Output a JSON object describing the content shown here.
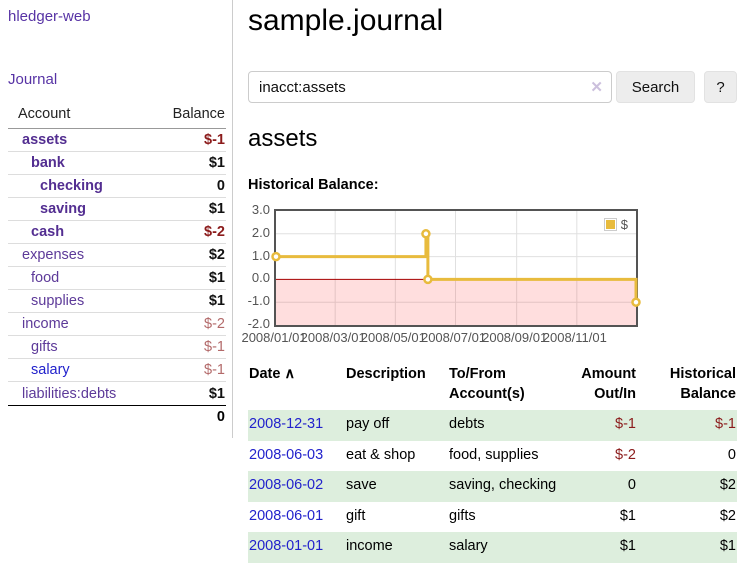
{
  "app": {
    "brand": "hledger-web",
    "nav_journal": "Journal"
  },
  "sidebar": {
    "header": {
      "account": "Account",
      "balance": "Balance"
    },
    "rows": [
      {
        "name": "assets",
        "indent": 0,
        "bold": true,
        "balance": "$-1",
        "balance_style": "neg-strong"
      },
      {
        "name": "bank",
        "indent": 1,
        "bold": true,
        "balance": "$1",
        "balance_style": "pos"
      },
      {
        "name": "checking",
        "indent": 2,
        "bold": true,
        "balance": "0",
        "balance_style": "pos"
      },
      {
        "name": "saving",
        "indent": 2,
        "bold": true,
        "balance": "$1",
        "balance_style": "pos"
      },
      {
        "name": "cash",
        "indent": 1,
        "bold": true,
        "balance": "$-2",
        "balance_style": "neg-strong"
      },
      {
        "name": "expenses",
        "indent": 0,
        "bold": false,
        "balance": "$2",
        "balance_style": "pos"
      },
      {
        "name": "food",
        "indent": 1,
        "bold": false,
        "balance": "$1",
        "balance_style": "pos"
      },
      {
        "name": "supplies",
        "indent": 1,
        "bold": false,
        "balance": "$1",
        "balance_style": "pos"
      },
      {
        "name": "income",
        "indent": 0,
        "bold": false,
        "balance": "$-2",
        "balance_style": "neg-soft"
      },
      {
        "name": "gifts",
        "indent": 1,
        "bold": false,
        "balance": "$-1",
        "balance_style": "neg-soft"
      },
      {
        "name": "salary",
        "indent": 1,
        "bold": false,
        "link_color": "blue",
        "balance": "$-1",
        "balance_style": "neg-soft"
      },
      {
        "name": "liabilities:debts",
        "indent": 0,
        "bold": false,
        "balance": "$1",
        "balance_style": "pos"
      }
    ],
    "total": "0"
  },
  "header": {
    "title": "sample.journal"
  },
  "search": {
    "value": "inacct:assets",
    "clear_icon": "✕",
    "button": "Search",
    "help_button": "?"
  },
  "account_page": {
    "title": "assets",
    "chart_label": "Historical Balance:"
  },
  "chart_data": {
    "type": "line",
    "title": "Historical Balance",
    "step": true,
    "legend": "$",
    "legend_position": "top-right",
    "grid": true,
    "ylim": [
      -2,
      3
    ],
    "xlim": [
      "2008-01-01",
      "2008-12-31"
    ],
    "y_ticks": [
      "3.0",
      "2.0",
      "1.0",
      "0.0",
      "-1.0",
      "-2.0"
    ],
    "x_ticks": [
      "2008/01/01",
      "2008/03/01",
      "2008/05/01",
      "2008/07/01",
      "2008/09/01",
      "2008/11/01"
    ],
    "series": [
      {
        "name": "$",
        "color": "#e8bb3d",
        "points": [
          [
            "2008-01-01",
            1
          ],
          [
            "2008-06-01",
            2
          ],
          [
            "2008-06-03",
            0
          ],
          [
            "2008-12-31",
            -1
          ]
        ]
      }
    ],
    "negative_region_fill": "#ffdede",
    "zero_line_color": "#a40000"
  },
  "register": {
    "columns": [
      {
        "label": "Date",
        "sort_icon": "∧",
        "align": "left"
      },
      {
        "label": "Description",
        "align": "left"
      },
      {
        "label": "To/From Account(s)",
        "align": "left"
      },
      {
        "label": "Amount Out/In",
        "align": "right"
      },
      {
        "label": "Historical Balance",
        "align": "right"
      }
    ],
    "rows": [
      {
        "date": "2008-12-31",
        "description": "pay off",
        "accounts": "debts",
        "amount": "$-1",
        "balance": "$-1"
      },
      {
        "date": "2008-06-03",
        "description": "eat & shop",
        "accounts": "food, supplies",
        "amount": "$-2",
        "balance": "0"
      },
      {
        "date": "2008-06-02",
        "description": "save",
        "accounts": "saving, checking",
        "amount": "0",
        "balance": "$2"
      },
      {
        "date": "2008-06-01",
        "description": "gift",
        "accounts": "gifts",
        "amount": "$1",
        "balance": "$2"
      },
      {
        "date": "2008-01-01",
        "description": "income",
        "accounts": "salary",
        "amount": "$1",
        "balance": "$1"
      }
    ]
  }
}
